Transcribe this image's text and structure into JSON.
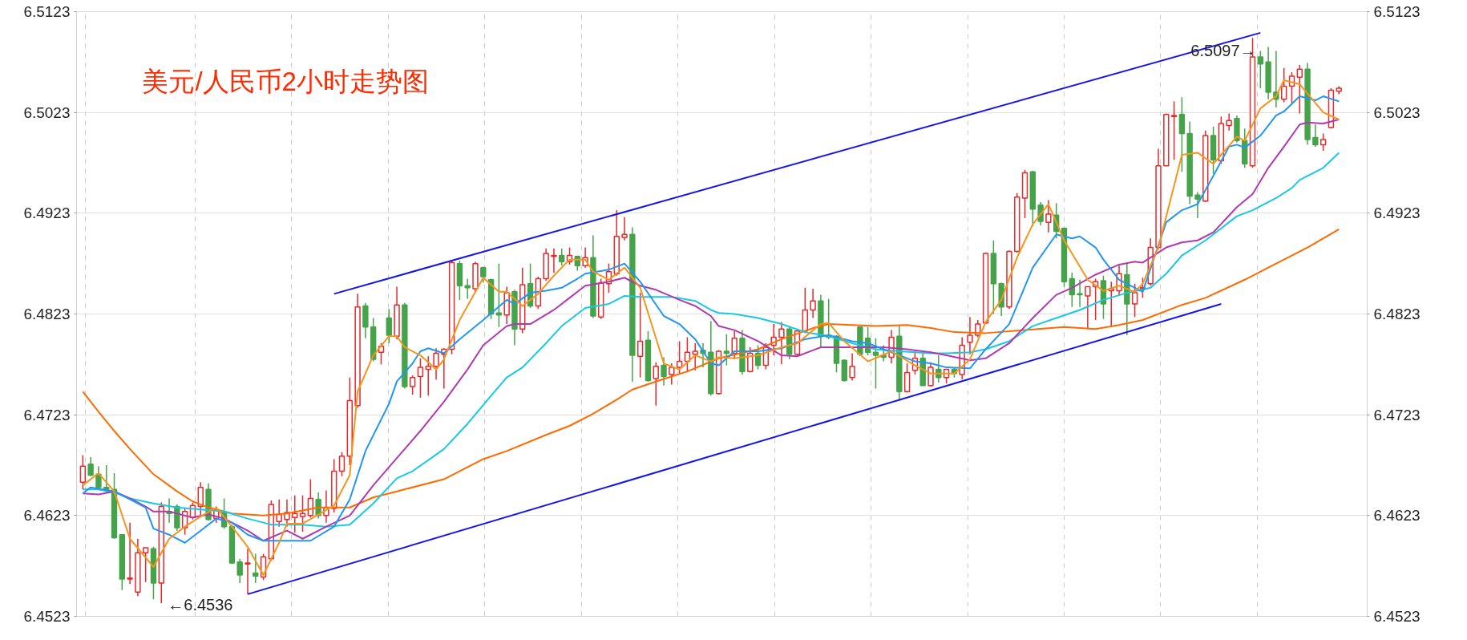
{
  "chart_data": {
    "type": "candlestick",
    "title": "美元/人民币2小时走势图",
    "categories": [
      null,
      null,
      null,
      null,
      null,
      null,
      null,
      null,
      null,
      null,
      null,
      null,
      null,
      null,
      null,
      null,
      null,
      null,
      null,
      null,
      null,
      null,
      null,
      null,
      null,
      null,
      null,
      null,
      null,
      null,
      null,
      null,
      null,
      null,
      null,
      null,
      null,
      null,
      null,
      null,
      null,
      null,
      null,
      null,
      null,
      null,
      null,
      null,
      null,
      null,
      null,
      null,
      null,
      null,
      null,
      null,
      null,
      null,
      null,
      null,
      null,
      null,
      null,
      null,
      null,
      null,
      null,
      null,
      null,
      null,
      null,
      null,
      null,
      null,
      null,
      null,
      null,
      null,
      null,
      null,
      null,
      null,
      null,
      null,
      null,
      null,
      null,
      null,
      null,
      null,
      null,
      null,
      null,
      null,
      null,
      null,
      null,
      null,
      null,
      null,
      null,
      null,
      null,
      null,
      null,
      null,
      null,
      null,
      null,
      null,
      null,
      null,
      null,
      null,
      null,
      null,
      null,
      null,
      null,
      null,
      null,
      null,
      null,
      null,
      null,
      null,
      null,
      null,
      null,
      null,
      null,
      null,
      null,
      null,
      null,
      null,
      null,
      null,
      null,
      null,
      null,
      null,
      null,
      null,
      null,
      null,
      null,
      null,
      null,
      null,
      null,
      null,
      null,
      null,
      null,
      null,
      null,
      null,
      null,
      null,
      null
    ],
    "ohlc": [
      [
        6.4656,
        6.4683,
        6.4649,
        6.4672
      ],
      [
        6.4674,
        6.4681,
        6.4662,
        6.4663
      ],
      [
        6.4664,
        6.4672,
        6.4649,
        6.4651
      ],
      [
        6.4651,
        6.4673,
        6.4646,
        6.4648
      ],
      [
        6.4649,
        6.4665,
        6.46,
        6.4601
      ],
      [
        6.4604,
        6.4604,
        6.4549,
        6.456
      ],
      [
        6.456,
        6.4616,
        6.4555,
        6.4561
      ],
      [
        6.4547,
        6.46,
        6.4543,
        6.4586
      ],
      [
        6.4586,
        6.4591,
        6.4557,
        6.4591
      ],
      [
        6.459,
        6.4592,
        6.454,
        6.4556
      ],
      [
        6.4556,
        6.4636,
        6.4536,
        6.4632
      ],
      [
        6.4627,
        6.464,
        6.4616,
        6.4625
      ],
      [
        6.4632,
        6.4634,
        6.4608,
        6.4611
      ],
      [
        6.4611,
        6.463,
        6.4604,
        6.4627
      ],
      [
        6.4621,
        6.4636,
        6.4619,
        6.4633
      ],
      [
        6.4632,
        6.4656,
        6.4623,
        6.4651
      ],
      [
        6.4649,
        6.4655,
        6.4618,
        6.4619
      ],
      [
        6.462,
        6.4632,
        6.4616,
        6.4629
      ],
      [
        6.4626,
        6.464,
        6.461,
        6.4612
      ],
      [
        6.4612,
        6.4614,
        6.4575,
        6.4576
      ],
      [
        6.4577,
        6.458,
        6.4556,
        6.4564
      ],
      [
        6.4575,
        6.459,
        6.4545,
        6.4576
      ],
      [
        6.4566,
        6.4585,
        6.4556,
        6.4563
      ],
      [
        6.4562,
        6.4585,
        6.4559,
        6.4582
      ],
      [
        6.458,
        6.4638,
        6.4578,
        6.4634
      ],
      [
        6.4617,
        6.4639,
        6.4612,
        6.4624
      ],
      [
        6.4619,
        6.4639,
        6.4612,
        6.4626
      ],
      [
        6.4621,
        6.4643,
        6.4606,
        6.4625
      ],
      [
        6.4622,
        6.4643,
        6.4607,
        6.4625
      ],
      [
        6.4623,
        6.4659,
        6.4621,
        6.464
      ],
      [
        6.4639,
        6.4646,
        6.462,
        6.4623
      ],
      [
        6.4623,
        6.4648,
        6.4616,
        6.4631
      ],
      [
        6.463,
        6.4679,
        6.4626,
        6.4667
      ],
      [
        6.4667,
        6.4686,
        6.4662,
        6.4682
      ],
      [
        6.4682,
        6.476,
        6.4673,
        6.4737
      ],
      [
        6.4732,
        6.4843,
        6.473,
        6.483
      ],
      [
        6.4831,
        6.4834,
        6.4799,
        6.481
      ],
      [
        6.481,
        6.4819,
        6.4776,
        6.4778
      ],
      [
        6.4785,
        6.4794,
        6.4773,
        6.4791
      ],
      [
        6.4819,
        6.4828,
        6.4794,
        6.4802
      ],
      [
        6.4801,
        6.485,
        6.4798,
        6.4832
      ],
      [
        6.4832,
        6.4834,
        6.4749,
        6.4751
      ],
      [
        6.4751,
        6.4762,
        6.4743,
        6.476
      ],
      [
        6.4761,
        6.4779,
        6.474,
        6.477
      ],
      [
        6.4768,
        6.4781,
        6.4742,
        6.4771
      ],
      [
        6.4771,
        6.4789,
        6.4758,
        6.4784
      ],
      [
        6.4783,
        6.4789,
        6.4749,
        6.4788
      ],
      [
        6.4788,
        6.4876,
        6.4783,
        6.4874
      ],
      [
        6.4873,
        6.4876,
        6.4837,
        6.4851
      ],
      [
        6.4851,
        6.4858,
        6.4838,
        6.4849
      ],
      [
        6.4848,
        6.4875,
        6.4845,
        6.4873
      ],
      [
        6.4869,
        6.487,
        6.4854,
        6.486
      ],
      [
        6.4857,
        6.4858,
        6.4818,
        6.4823
      ],
      [
        6.4824,
        6.4873,
        6.481,
        6.4822
      ],
      [
        6.4822,
        6.485,
        6.4813,
        6.4844
      ],
      [
        6.4845,
        6.4847,
        6.4792,
        6.4808
      ],
      [
        6.4808,
        6.4869,
        6.4804,
        6.4852
      ],
      [
        6.4853,
        6.4873,
        6.4829,
        6.4831
      ],
      [
        6.4831,
        6.486,
        6.4828,
        6.4858
      ],
      [
        6.4858,
        6.4888,
        6.4856,
        6.4883
      ],
      [
        6.488,
        6.4888,
        6.4864,
        6.4881
      ],
      [
        6.4881,
        6.4888,
        6.4871,
        6.4875
      ],
      [
        6.4875,
        6.4889,
        6.4872,
        6.4881
      ],
      [
        6.488,
        6.4881,
        6.4866,
        6.4871
      ],
      [
        6.4871,
        6.4889,
        6.4869,
        6.4879
      ],
      [
        6.4879,
        6.4901,
        6.4819,
        6.4821
      ],
      [
        6.482,
        6.4858,
        6.4818,
        6.4854
      ],
      [
        6.4853,
        6.4873,
        6.4844,
        6.4865
      ],
      [
        6.4863,
        6.4926,
        6.4861,
        6.49
      ],
      [
        6.4899,
        6.4919,
        6.4896,
        6.4902
      ],
      [
        6.4902,
        6.4909,
        6.4756,
        6.4782
      ],
      [
        6.4781,
        6.4844,
        6.476,
        6.4796
      ],
      [
        6.4797,
        6.4806,
        6.4756,
        6.4757
      ],
      [
        6.4759,
        6.4775,
        6.4732,
        6.4771
      ],
      [
        6.4772,
        6.478,
        6.4752,
        6.4761
      ],
      [
        6.4763,
        6.4774,
        6.4753,
        6.477
      ],
      [
        6.477,
        6.4796,
        6.4764,
        6.4776
      ],
      [
        6.4776,
        6.48,
        6.4765,
        6.4785
      ],
      [
        6.4783,
        6.4794,
        6.4767,
        6.4786
      ],
      [
        6.4787,
        6.4794,
        6.477,
        6.4784
      ],
      [
        6.4785,
        6.4816,
        6.4742,
        6.4744
      ],
      [
        6.4744,
        6.4787,
        6.4743,
        6.4786
      ],
      [
        6.4786,
        6.4803,
        6.4772,
        6.4784
      ],
      [
        6.4784,
        6.4806,
        6.4778,
        6.4799
      ],
      [
        6.4799,
        6.4807,
        6.4763,
        6.4766
      ],
      [
        6.4766,
        6.479,
        6.4765,
        6.4784
      ],
      [
        6.4784,
        6.4792,
        6.4768,
        6.4772
      ],
      [
        6.4772,
        6.4794,
        6.4768,
        6.479
      ],
      [
        6.4792,
        6.4813,
        6.4782,
        6.48
      ],
      [
        6.48,
        6.4815,
        6.4773,
        6.4808
      ],
      [
        6.4808,
        6.481,
        6.4778,
        6.4783
      ],
      [
        6.4783,
        6.4808,
        6.4782,
        6.4806
      ],
      [
        6.4806,
        6.4849,
        6.4804,
        6.4827
      ],
      [
        6.4827,
        6.4848,
        6.4819,
        6.4836
      ],
      [
        6.4836,
        6.4842,
        6.479,
        6.4801
      ],
      [
        6.4802,
        6.4838,
        6.4798,
        6.48
      ],
      [
        6.4801,
        6.4802,
        6.4765,
        6.4774
      ],
      [
        6.4777,
        6.4778,
        6.4756,
        6.4757
      ],
      [
        6.476,
        6.4784,
        6.4757,
        6.4771
      ],
      [
        6.481,
        6.481,
        6.4781,
        6.4783
      ],
      [
        6.4799,
        6.481,
        6.4782,
        6.4785
      ],
      [
        6.4785,
        6.4799,
        6.4749,
        6.4782
      ],
      [
        6.4782,
        6.4792,
        6.4776,
        6.478
      ],
      [
        6.478,
        6.4807,
        6.4774,
        6.48
      ],
      [
        6.4801,
        6.4812,
        6.4737,
        6.4746
      ],
      [
        6.4746,
        6.4774,
        6.4745,
        6.4765
      ],
      [
        6.4767,
        6.4786,
        6.4763,
        6.4779
      ],
      [
        6.4779,
        6.4785,
        6.4752,
        6.4752
      ],
      [
        6.4752,
        6.4775,
        6.4751,
        6.477
      ],
      [
        6.4768,
        6.4782,
        6.4755,
        6.476
      ],
      [
        6.476,
        6.4768,
        6.4754,
        6.4768
      ],
      [
        6.4768,
        6.477,
        6.476,
        6.4764
      ],
      [
        6.4763,
        6.48,
        6.4758,
        6.4792
      ],
      [
        6.4795,
        6.482,
        6.4783,
        6.4802
      ],
      [
        6.4802,
        6.4817,
        6.48,
        6.4813
      ],
      [
        6.4814,
        6.4884,
        6.4813,
        6.4883
      ],
      [
        6.4883,
        6.4896,
        6.4823,
        6.4853
      ],
      [
        6.4853,
        6.4854,
        6.4821,
        6.483
      ],
      [
        6.483,
        6.4886,
        6.4828,
        6.4885
      ],
      [
        6.4885,
        6.4943,
        6.4884,
        6.4939
      ],
      [
        6.4938,
        6.4966,
        6.4918,
        6.4963
      ],
      [
        6.4964,
        6.4965,
        6.491,
        6.4927
      ],
      [
        6.4931,
        6.4934,
        6.4911,
        6.4915
      ],
      [
        6.4914,
        6.4936,
        6.4904,
        6.4922
      ],
      [
        6.4921,
        6.4933,
        6.4898,
        6.4905
      ],
      [
        6.4908,
        6.4909,
        6.485,
        6.4855
      ],
      [
        6.4858,
        6.4864,
        6.483,
        6.4842
      ],
      [
        6.4843,
        6.4857,
        6.483,
        6.4842
      ],
      [
        6.4841,
        6.485,
        6.4809,
        6.485
      ],
      [
        6.485,
        6.4858,
        6.4817,
        6.4855
      ],
      [
        6.4856,
        6.4861,
        6.4818,
        6.4833
      ],
      [
        6.4846,
        6.4855,
        6.481,
        6.4848
      ],
      [
        6.4846,
        6.4871,
        6.4841,
        6.4863
      ],
      [
        6.4862,
        6.4873,
        6.4802,
        6.4833
      ],
      [
        6.4833,
        6.4853,
        6.482,
        6.4844
      ],
      [
        6.4848,
        6.4859,
        6.4839,
        6.4849
      ],
      [
        6.4853,
        6.4898,
        6.4851,
        6.4889
      ],
      [
        6.4889,
        6.4987,
        6.4887,
        6.497
      ],
      [
        6.497,
        6.5022,
        6.497,
        6.5021
      ],
      [
        6.5019,
        6.5034,
        6.4976,
        6.502
      ],
      [
        6.5021,
        6.5038,
        6.4964,
        6.5002
      ],
      [
        6.5002,
        6.5014,
        6.4932,
        6.494
      ],
      [
        6.4941,
        6.4944,
        6.4918,
        6.4937
      ],
      [
        6.4935,
        6.5005,
        6.4934,
        6.5
      ],
      [
        6.5,
        6.5009,
        6.4962,
        6.4976
      ],
      [
        6.4975,
        6.5019,
        6.4972,
        6.5012
      ],
      [
        6.501,
        6.5022,
        6.5005,
        6.5015
      ],
      [
        6.5017,
        6.502,
        6.4993,
        6.4995
      ],
      [
        6.4995,
        6.5007,
        6.4968,
        6.4972
      ],
      [
        6.497,
        6.5097,
        6.4968,
        6.5078
      ],
      [
        6.5078,
        6.5084,
        6.5047,
        6.5071
      ],
      [
        6.5073,
        6.5088,
        6.5036,
        6.5043
      ],
      [
        6.5043,
        6.5084,
        6.5028,
        6.5036
      ],
      [
        6.5036,
        6.5067,
        6.5033,
        6.5049
      ],
      [
        6.5049,
        6.5063,
        6.5032,
        6.5059
      ],
      [
        6.5058,
        6.507,
        6.5022,
        6.5066
      ],
      [
        6.5066,
        6.5072,
        6.4991,
        6.4996
      ],
      [
        6.4998,
        6.5011,
        6.4989,
        6.4991
      ],
      [
        6.4991,
        6.5002,
        6.4985,
        6.4996
      ],
      [
        6.5008,
        6.5047,
        6.5007,
        6.5045
      ],
      [
        6.5044,
        6.5049,
        6.5041,
        6.5047
      ]
    ],
    "colors": [
      "#e8282b",
      "#45a44a",
      "#45a44a",
      "#45a44a",
      "#45a44a",
      "#45a44a",
      "#e8282b",
      "#e8282b",
      "#e8282b",
      "#45a44a",
      "#e8282b",
      "#45a44a",
      "#45a44a",
      "#e8282b",
      "#e8282b",
      "#e8282b",
      "#45a44a",
      "#e8282b",
      "#45a44a",
      "#45a44a",
      "#45a44a",
      "#e8282b",
      "#45a44a",
      "#e8282b",
      "#e8282b",
      "#e8282b",
      "#e8282b",
      "#e8282b",
      "#e8282b",
      "#e8282b",
      "#45a44a",
      "#e8282b",
      "#e8282b",
      "#e8282b",
      "#e8282b",
      "#e8282b",
      "#45a44a",
      "#45a44a",
      "#e8282b",
      "#45a44a",
      "#e8282b",
      "#45a44a",
      "#e8282b",
      "#e8282b",
      "#e8282b",
      "#e8282b",
      "#e8282b",
      "#e8282b",
      "#45a44a",
      "#45a44a",
      "#e8282b",
      "#45a44a",
      "#45a44a",
      "#45a44a",
      "#e8282b",
      "#45a44a",
      "#e8282b",
      "#45a44a",
      "#e8282b",
      "#e8282b",
      "#e8282b",
      "#45a44a",
      "#e8282b",
      "#45a44a",
      "#e8282b",
      "#45a44a",
      "#e8282b",
      "#e8282b",
      "#e8282b",
      "#e8282b",
      "#45a44a",
      "#e8282b",
      "#45a44a",
      "#e8282b",
      "#45a44a",
      "#e8282b",
      "#e8282b",
      "#e8282b",
      "#e8282b",
      "#45a44a",
      "#45a44a",
      "#e8282b",
      "#45a44a",
      "#e8282b",
      "#45a44a",
      "#e8282b",
      "#45a44a",
      "#e8282b",
      "#e8282b",
      "#e8282b",
      "#45a44a",
      "#e8282b",
      "#e8282b",
      "#e8282b",
      "#45a44a",
      "#45a44a",
      "#45a44a",
      "#45a44a",
      "#e8282b",
      "#45a44a",
      "#45a44a",
      "#45a44a",
      "#45a44a",
      "#e8282b",
      "#45a44a",
      "#e8282b",
      "#e8282b",
      "#45a44a",
      "#e8282b",
      "#45a44a",
      "#e8282b",
      "#45a44a",
      "#e8282b",
      "#e8282b",
      "#e8282b",
      "#e8282b",
      "#45a44a",
      "#45a44a",
      "#e8282b",
      "#e8282b",
      "#e8282b",
      "#45a44a",
      "#45a44a",
      "#e8282b",
      "#45a44a",
      "#45a44a",
      "#45a44a",
      "#45a44a",
      "#e8282b",
      "#e8282b",
      "#45a44a",
      "#e8282b",
      "#e8282b",
      "#45a44a",
      "#e8282b",
      "#e8282b",
      "#e8282b",
      "#e8282b",
      "#e8282b",
      "#e8282b",
      "#45a44a",
      "#45a44a",
      "#45a44a",
      "#e8282b",
      "#45a44a",
      "#e8282b",
      "#e8282b",
      "#45a44a",
      "#45a44a",
      "#e8282b",
      "#45a44a",
      "#45a44a",
      "#45a44a",
      "#e8282b",
      "#e8282b",
      "#e8282b",
      "#45a44a",
      "#45a44a",
      "#e8282b",
      "#e8282b",
      "#e8282b"
    ],
    "series": [
      {
        "type": "line",
        "color": "#ff6a00",
        "values": [
          6.4746,
          null,
          6.4726,
          null,
          6.4707,
          null,
          6.4689,
          null,
          null,
          6.4664,
          null,
          null,
          6.4647,
          null,
          6.4637,
          null,
          6.4631,
          null,
          null,
          6.4625,
          null,
          null,
          null,
          6.4623,
          null,
          null,
          6.4625,
          null,
          null,
          null,
          6.4631,
          null,
          null,
          null,
          6.4631,
          null,
          null,
          6.4641,
          null,
          null,
          6.4647,
          null,
          null,
          null,
          null,
          null,
          6.4659,
          null,
          null,
          null,
          null,
          6.4679,
          null,
          null,
          6.4687,
          null,
          null,
          null,
          null,
          6.4703,
          null,
          null,
          6.4712,
          null,
          null,
          6.4724,
          null,
          null,
          6.4738,
          null,
          6.4748,
          null,
          null,
          6.4756,
          null,
          null,
          null,
          6.4766,
          null,
          null,
          null,
          6.4779,
          null,
          null,
          null,
          null,
          6.4788,
          null,
          null,
          6.4798,
          null,
          null,
          null,
          6.4809,
          null,
          6.4813,
          null,
          null,
          null,
          null,
          null,
          6.4811,
          null,
          null,
          null,
          6.4812,
          null,
          null,
          6.4809,
          null,
          null,
          6.4805,
          null,
          null,
          null,
          6.4804,
          null,
          null,
          null,
          null,
          6.4807,
          null,
          null,
          null,
          null,
          6.481,
          null,
          null,
          null,
          6.4808,
          null,
          null,
          6.4812,
          null,
          null,
          6.4817,
          null,
          null,
          null,
          null,
          6.4832,
          null,
          null,
          6.4839,
          null,
          null,
          null,
          null,
          6.4857,
          null,
          null,
          null,
          6.4873,
          null,
          null,
          null,
          6.4889,
          null,
          null,
          null,
          6.4907
        ]
      },
      {
        "type": "line",
        "color": "#17c9e4",
        "values": [
          6.4649,
          null,
          6.4649,
          null,
          6.4646,
          null,
          6.464,
          null,
          null,
          6.4635,
          null,
          null,
          6.4631,
          null,
          null,
          6.4629,
          null,
          null,
          6.4627,
          null,
          null,
          6.462,
          null,
          null,
          6.4614,
          null,
          6.4614,
          null,
          6.4614,
          null,
          null,
          6.4612,
          null,
          null,
          6.4614,
          null,
          null,
          6.4635,
          null,
          null,
          6.466,
          null,
          6.4667,
          null,
          null,
          null,
          6.4689,
          null,
          null,
          6.4714,
          null,
          null,
          6.4742,
          null,
          6.476,
          null,
          6.477,
          null,
          null,
          6.4794,
          null,
          6.4811,
          null,
          null,
          6.4829,
          null,
          null,
          6.4833,
          null,
          6.4841,
          null,
          6.484,
          null,
          null,
          null,
          6.484,
          null,
          null,
          6.4836,
          null,
          6.4827,
          6.4824,
          null,
          6.4823,
          null,
          null,
          6.4819,
          null,
          null,
          6.4813,
          null,
          null,
          6.4805,
          null,
          null,
          6.4801,
          null,
          null,
          6.4794,
          null,
          null,
          6.4788,
          null,
          null,
          6.4786,
          null,
          null,
          null,
          6.4784,
          null,
          6.4784,
          null,
          null,
          6.4785,
          null,
          6.4788,
          null,
          null,
          6.4796,
          null,
          null,
          6.4811,
          null,
          null,
          6.4819,
          null,
          null,
          6.4827,
          null,
          null,
          6.4837,
          null,
          null,
          6.4844,
          null,
          6.4847,
          6.4849,
          null,
          6.4863,
          null,
          6.4881,
          null,
          null,
          6.4896,
          null,
          null,
          6.4914,
          6.492,
          null,
          6.4926,
          null,
          null,
          6.4938,
          null,
          6.4948,
          6.4956,
          null,
          null,
          6.4968,
          null,
          6.4983
        ]
      },
      {
        "type": "line",
        "color": "#b03ab0",
        "values": [
          6.4645,
          null,
          6.4644,
          null,
          6.4647,
          null,
          6.464,
          null,
          6.4632,
          6.4627,
          null,
          6.4627,
          null,
          null,
          6.4621,
          null,
          6.4624,
          null,
          6.462,
          null,
          null,
          6.4608,
          null,
          6.4598,
          null,
          null,
          6.4608,
          null,
          6.46,
          null,
          null,
          6.4612,
          null,
          null,
          6.4623,
          null,
          null,
          6.4653,
          null,
          null,
          6.468,
          null,
          null,
          6.4707,
          null,
          null,
          6.4736,
          null,
          null,
          6.4768,
          null,
          6.4792,
          null,
          null,
          6.4811,
          6.4813,
          null,
          6.4813,
          null,
          null,
          6.4827,
          null,
          6.4839,
          null,
          6.4851,
          null,
          null,
          6.4855,
          null,
          6.4859,
          null,
          6.4851,
          null,
          6.4847,
          null,
          null,
          6.4837,
          null,
          6.4831,
          null,
          6.4821,
          6.4811,
          null,
          6.4807,
          null,
          null,
          6.4796,
          null,
          null,
          6.4782,
          null,
          6.4781,
          null,
          null,
          6.479,
          null,
          6.479,
          null,
          null,
          6.479,
          null,
          null,
          6.479,
          null,
          null,
          6.4788,
          null,
          null,
          6.4785,
          null,
          6.4782,
          null,
          null,
          6.4777,
          null,
          6.4779,
          null,
          null,
          6.4794,
          null,
          null,
          6.4819,
          null,
          null,
          6.4842,
          null,
          6.4849,
          null,
          null,
          6.4862,
          null,
          null,
          6.4872,
          null,
          6.4875,
          6.4874,
          null,
          null,
          6.4889,
          null,
          6.4894,
          null,
          6.4896,
          null,
          6.4904,
          null,
          null,
          6.4929,
          null,
          6.4942,
          null,
          6.4968,
          null,
          6.4989,
          null,
          6.5011,
          6.5013,
          null,
          6.5012,
          null,
          6.5016
        ]
      },
      {
        "type": "line",
        "color": "#2196f3",
        "values": [
          6.4645,
          6.4651,
          null,
          null,
          6.4647,
          null,
          6.4639,
          null,
          6.4631,
          6.461,
          null,
          6.4604,
          null,
          6.4596,
          null,
          6.4608,
          null,
          6.462,
          null,
          6.4616,
          null,
          6.4604,
          null,
          6.4598,
          null,
          null,
          6.4598,
          null,
          null,
          6.4598,
          null,
          null,
          6.4612,
          null,
          6.4639,
          null,
          6.4687,
          null,
          null,
          6.4734,
          6.4756,
          null,
          6.4774,
          6.4786,
          6.4789,
          null,
          6.4784,
          null,
          6.4798,
          null,
          null,
          6.4817,
          null,
          null,
          6.4837,
          6.4833,
          null,
          6.4844,
          null,
          6.4846,
          null,
          6.4849,
          null,
          6.4858,
          6.4863,
          null,
          null,
          6.4867,
          null,
          6.4873,
          null,
          6.4855,
          null,
          null,
          6.4821,
          null,
          6.4813,
          null,
          6.4798,
          null,
          6.4774,
          6.4772,
          null,
          6.4786,
          null,
          null,
          6.4786,
          null,
          null,
          6.4789,
          null,
          null,
          6.4798,
          null,
          null,
          6.4802,
          null,
          null,
          6.4796,
          null,
          6.4794,
          null,
          null,
          6.4785,
          null,
          null,
          6.4776,
          null,
          6.4774,
          null,
          6.477,
          null,
          null,
          6.4769,
          null,
          6.4788,
          null,
          null,
          6.4813,
          null,
          null,
          6.4869,
          null,
          null,
          6.4902,
          null,
          6.4898,
          6.49,
          null,
          6.4889,
          6.4877,
          null,
          6.4857,
          null,
          6.4849,
          6.4845,
          null,
          null,
          6.4914,
          null,
          6.4926,
          null,
          6.4932,
          null,
          6.496,
          null,
          6.4989,
          6.4991,
          6.4988,
          null,
          6.5,
          null,
          6.502,
          6.5024,
          null,
          6.5039,
          null,
          6.5035,
          6.5039,
          null,
          6.5034
        ]
      },
      {
        "type": "line",
        "color": "#f7941d",
        "values": [
          6.4653,
          null,
          6.4665,
          null,
          6.4647,
          null,
          6.46,
          null,
          null,
          6.4572,
          null,
          6.46,
          null,
          6.4612,
          null,
          6.4622,
          null,
          6.4631,
          null,
          6.4612,
          null,
          6.4592,
          null,
          6.4564,
          null,
          6.4596,
          6.4615,
          null,
          6.4615,
          null,
          null,
          null,
          6.4633,
          null,
          6.4663,
          6.4746,
          null,
          6.4782,
          null,
          6.4801,
          6.4801,
          6.479,
          null,
          6.4782,
          null,
          6.4768,
          6.4778,
          null,
          6.4817,
          null,
          null,
          6.4859,
          null,
          6.4845,
          6.4845,
          null,
          6.4831,
          null,
          6.4843,
          null,
          6.4861,
          null,
          6.4877,
          null,
          6.4877,
          6.4865,
          null,
          6.4857,
          null,
          6.4869,
          null,
          6.4849,
          null,
          null,
          6.4774,
          null,
          6.4768,
          null,
          6.4782,
          null,
          6.4776,
          6.478,
          null,
          6.4779,
          null,
          null,
          6.4782,
          null,
          null,
          6.479,
          null,
          6.4794,
          null,
          null,
          6.4813,
          6.4814,
          null,
          6.4796,
          null,
          null,
          6.4776,
          null,
          null,
          6.4786,
          null,
          null,
          6.4772,
          null,
          6.4764,
          null,
          null,
          6.4764,
          null,
          6.4778,
          null,
          6.4815,
          null,
          6.4837,
          null,
          6.4879,
          null,
          6.4912,
          null,
          6.4932,
          null,
          6.4896,
          null,
          null,
          6.4857,
          null,
          6.4846,
          null,
          6.4851,
          null,
          6.4845,
          6.4853,
          null,
          6.4889,
          null,
          null,
          6.4981,
          null,
          6.4983,
          null,
          6.4972,
          null,
          null,
          6.4999,
          6.4995,
          null,
          6.5027,
          null,
          6.5039,
          6.5055,
          null,
          6.5051,
          null,
          null,
          6.5023,
          null,
          6.5016
        ]
      },
      {
        "type": "line",
        "color": "#1515e6",
        "values": [
          null,
          null,
          null,
          null,
          null,
          null,
          null,
          null,
          null,
          null,
          null,
          null,
          null,
          null,
          null,
          null,
          null,
          null,
          null,
          null,
          null,
          null,
          null,
          null,
          null,
          null,
          null,
          null,
          null,
          null,
          null,
          null,
          6.4843,
          null,
          null,
          null,
          null,
          null,
          null,
          null,
          null,
          null,
          null,
          null,
          null,
          null,
          null,
          null,
          null,
          null,
          null,
          null,
          null,
          null,
          null,
          null,
          null,
          null,
          null,
          null,
          null,
          null,
          null,
          null,
          null,
          null,
          null,
          null,
          null,
          null,
          null,
          null,
          null,
          null,
          null,
          null,
          null,
          null,
          null,
          null,
          null,
          null,
          null,
          null,
          null,
          null,
          null,
          null,
          null,
          null,
          null,
          null,
          null,
          null,
          null,
          null,
          null,
          null,
          null,
          null,
          null,
          null,
          null,
          null,
          null,
          null,
          null,
          null,
          null,
          null,
          null,
          null,
          null,
          null,
          null,
          null,
          null,
          null,
          null,
          null,
          null,
          null,
          null,
          null,
          null,
          null,
          null,
          null,
          null,
          null,
          null,
          null,
          null,
          null,
          null,
          null,
          null,
          null,
          null,
          null,
          null,
          null,
          null,
          null,
          null,
          null,
          null,
          null,
          null,
          null,
          6.5102,
          null,
          null,
          null,
          null,
          null,
          null,
          null,
          null,
          null,
          null
        ]
      },
      {
        "type": "line",
        "color": "#1515e6",
        "values": [
          null,
          null,
          null,
          null,
          null,
          null,
          null,
          null,
          null,
          null,
          null,
          null,
          null,
          null,
          null,
          null,
          null,
          null,
          null,
          null,
          null,
          6.4545,
          null,
          null,
          null,
          null,
          null,
          null,
          null,
          null,
          null,
          null,
          null,
          null,
          null,
          null,
          null,
          null,
          null,
          null,
          null,
          null,
          null,
          null,
          null,
          null,
          null,
          null,
          null,
          null,
          null,
          null,
          null,
          null,
          null,
          null,
          null,
          null,
          null,
          null,
          null,
          null,
          null,
          null,
          null,
          null,
          null,
          null,
          null,
          null,
          null,
          null,
          null,
          null,
          null,
          null,
          null,
          null,
          null,
          null,
          null,
          null,
          null,
          null,
          null,
          null,
          null,
          null,
          null,
          null,
          null,
          null,
          null,
          null,
          null,
          null,
          null,
          null,
          null,
          null,
          null,
          null,
          null,
          null,
          null,
          null,
          null,
          null,
          null,
          null,
          null,
          null,
          null,
          null,
          null,
          null,
          null,
          null,
          null,
          null,
          null,
          null,
          null,
          null,
          null,
          null,
          null,
          null,
          null,
          null,
          null,
          null,
          null,
          null,
          null,
          null,
          null,
          null,
          null,
          null,
          null,
          null,
          null,
          null,
          null,
          6.4833,
          null,
          null,
          null,
          null,
          null,
          null,
          null,
          null,
          null,
          null,
          null,
          null,
          null,
          null,
          null
        ]
      }
    ],
    "ylim": [
      6.4523,
      6.5123
    ],
    "yticks": [
      6.4523,
      6.4623,
      6.4723,
      6.4823,
      6.4923,
      6.5023,
      6.5123
    ],
    "y2lim": [
      6.4523,
      6.5123
    ],
    "y2ticks": [
      6.4523,
      6.4623,
      6.4723,
      6.4823,
      6.4923,
      6.5023,
      6.5123
    ],
    "annotations": [
      "←6.4536",
      "6.5097→"
    ],
    "grid": true,
    "tick_labels": "y"
  }
}
